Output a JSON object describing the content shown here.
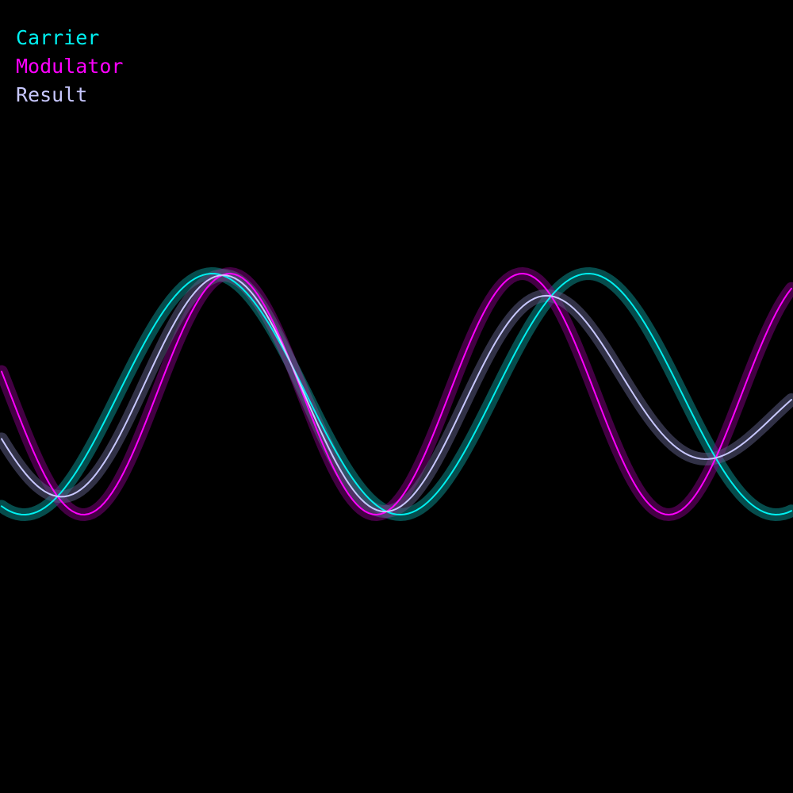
{
  "chart_data": {
    "type": "line",
    "title": "",
    "xlabel": "",
    "ylabel": "",
    "xlim": [
      0,
      1
    ],
    "ylim": [
      -1.6,
      1.6
    ],
    "grid": false,
    "legend_position": "top-left",
    "samples": 200,
    "series": [
      {
        "name": "Carrier",
        "color": "#00f0f0",
        "glow_color": "#0b8a8a",
        "formula": "sine",
        "amplitude": 1.0,
        "cycles": 2.1,
        "phase": -0.31,
        "offset": 0
      },
      {
        "name": "Modulator",
        "color": "#ff00ff",
        "glow_color": "#7a007a",
        "formula": "sine",
        "amplitude": 1.0,
        "cycles": 2.7,
        "phase": -0.53,
        "offset": 0
      },
      {
        "name": "Result",
        "color": "#c8c8ff",
        "glow_color": "#5a5a80",
        "formula": "average",
        "of": [
          "Carrier",
          "Modulator"
        ]
      }
    ]
  }
}
